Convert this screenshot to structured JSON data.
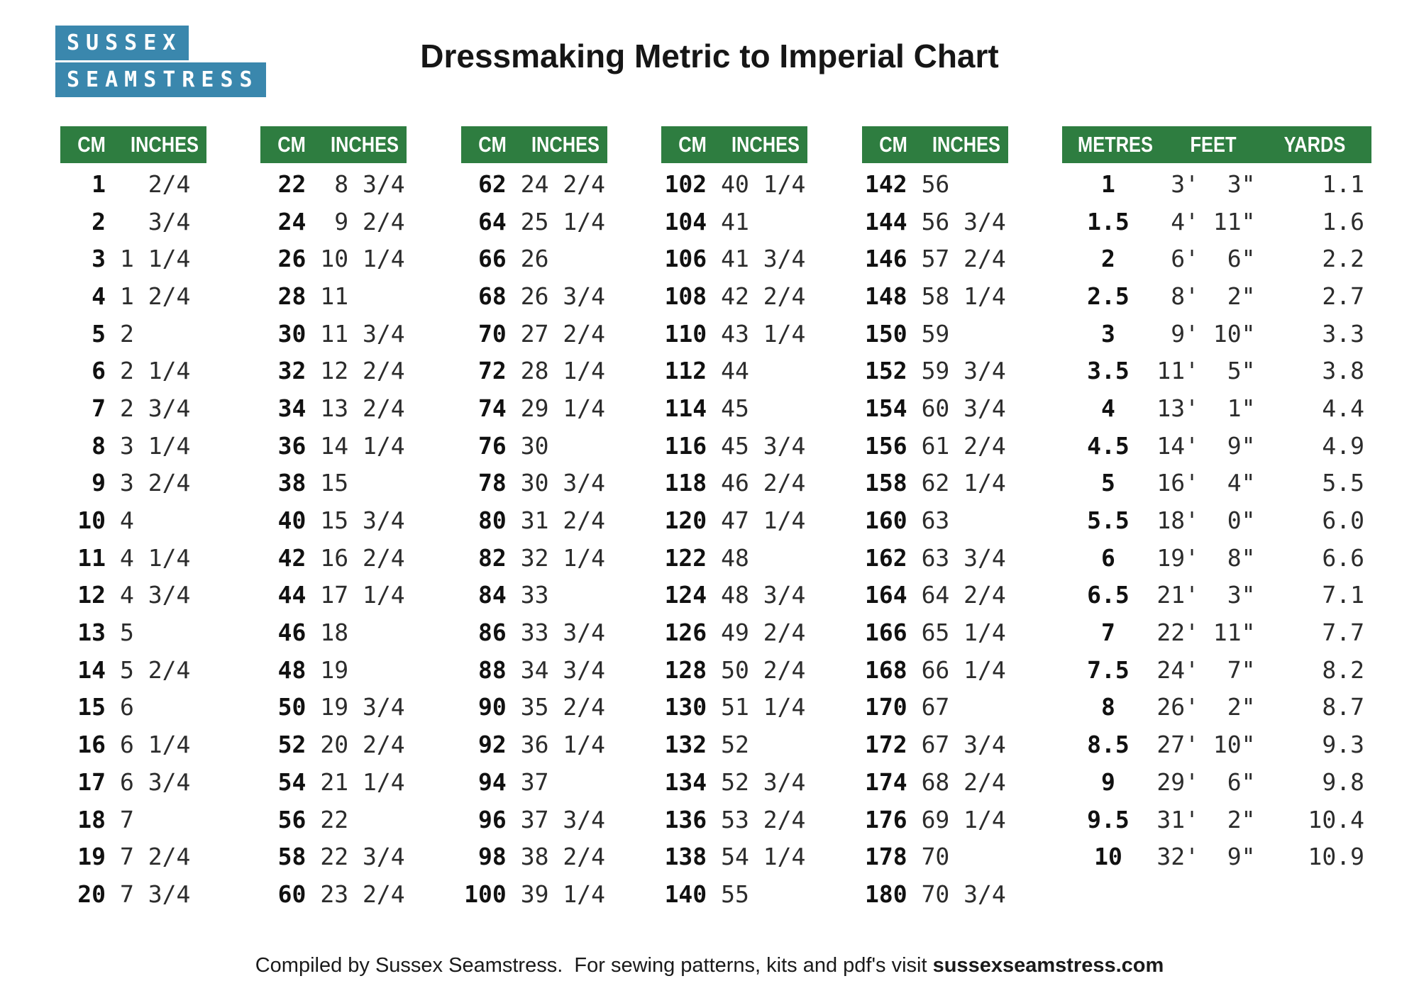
{
  "title": "Dressmaking Metric to Imperial Chart",
  "logo": {
    "line1": "SUSSEX",
    "line2": "SEAMSTRESS"
  },
  "colors": {
    "header_green": "#2e7d40",
    "logo_blue": "#3a87ad"
  },
  "cm_tables": [
    {
      "headers": [
        "CM",
        "INCHES"
      ],
      "rows": [
        [
          "1",
          "  2/4"
        ],
        [
          "2",
          "  3/4"
        ],
        [
          "3",
          "1 1/4"
        ],
        [
          "4",
          "1 2/4"
        ],
        [
          "5",
          "2"
        ],
        [
          "6",
          "2 1/4"
        ],
        [
          "7",
          "2 3/4"
        ],
        [
          "8",
          "3 1/4"
        ],
        [
          "9",
          "3 2/4"
        ],
        [
          "10",
          "4"
        ],
        [
          "11",
          "4 1/4"
        ],
        [
          "12",
          "4 3/4"
        ],
        [
          "13",
          "5"
        ],
        [
          "14",
          "5 2/4"
        ],
        [
          "15",
          "6"
        ],
        [
          "16",
          "6 1/4"
        ],
        [
          "17",
          "6 3/4"
        ],
        [
          "18",
          "7"
        ],
        [
          "19",
          "7 2/4"
        ],
        [
          "20",
          "7 3/4"
        ]
      ]
    },
    {
      "headers": [
        "CM",
        "INCHES"
      ],
      "rows": [
        [
          "22",
          " 8 3/4"
        ],
        [
          "24",
          " 9 2/4"
        ],
        [
          "26",
          "10 1/4"
        ],
        [
          "28",
          "11"
        ],
        [
          "30",
          "11 3/4"
        ],
        [
          "32",
          "12 2/4"
        ],
        [
          "34",
          "13 2/4"
        ],
        [
          "36",
          "14 1/4"
        ],
        [
          "38",
          "15"
        ],
        [
          "40",
          "15 3/4"
        ],
        [
          "42",
          "16 2/4"
        ],
        [
          "44",
          "17 1/4"
        ],
        [
          "46",
          "18"
        ],
        [
          "48",
          "19"
        ],
        [
          "50",
          "19 3/4"
        ],
        [
          "52",
          "20 2/4"
        ],
        [
          "54",
          "21 1/4"
        ],
        [
          "56",
          "22"
        ],
        [
          "58",
          "22 3/4"
        ],
        [
          "60",
          "23 2/4"
        ]
      ]
    },
    {
      "headers": [
        "CM",
        "INCHES"
      ],
      "rows": [
        [
          "62",
          "24 2/4"
        ],
        [
          "64",
          "25 1/4"
        ],
        [
          "66",
          "26"
        ],
        [
          "68",
          "26 3/4"
        ],
        [
          "70",
          "27 2/4"
        ],
        [
          "72",
          "28 1/4"
        ],
        [
          "74",
          "29 1/4"
        ],
        [
          "76",
          "30"
        ],
        [
          "78",
          "30 3/4"
        ],
        [
          "80",
          "31 2/4"
        ],
        [
          "82",
          "32 1/4"
        ],
        [
          "84",
          "33"
        ],
        [
          "86",
          "33 3/4"
        ],
        [
          "88",
          "34 3/4"
        ],
        [
          "90",
          "35 2/4"
        ],
        [
          "92",
          "36 1/4"
        ],
        [
          "94",
          "37"
        ],
        [
          "96",
          "37 3/4"
        ],
        [
          "98",
          "38 2/4"
        ],
        [
          "100",
          "39 1/4"
        ]
      ]
    },
    {
      "headers": [
        "CM",
        "INCHES"
      ],
      "rows": [
        [
          "102",
          "40 1/4"
        ],
        [
          "104",
          "41"
        ],
        [
          "106",
          "41 3/4"
        ],
        [
          "108",
          "42 2/4"
        ],
        [
          "110",
          "43 1/4"
        ],
        [
          "112",
          "44"
        ],
        [
          "114",
          "45"
        ],
        [
          "116",
          "45 3/4"
        ],
        [
          "118",
          "46 2/4"
        ],
        [
          "120",
          "47 1/4"
        ],
        [
          "122",
          "48"
        ],
        [
          "124",
          "48 3/4"
        ],
        [
          "126",
          "49 2/4"
        ],
        [
          "128",
          "50 2/4"
        ],
        [
          "130",
          "51 1/4"
        ],
        [
          "132",
          "52"
        ],
        [
          "134",
          "52 3/4"
        ],
        [
          "136",
          "53 2/4"
        ],
        [
          "138",
          "54 1/4"
        ],
        [
          "140",
          "55"
        ]
      ]
    },
    {
      "headers": [
        "CM",
        "INCHES"
      ],
      "rows": [
        [
          "142",
          "56"
        ],
        [
          "144",
          "56 3/4"
        ],
        [
          "146",
          "57 2/4"
        ],
        [
          "148",
          "58 1/4"
        ],
        [
          "150",
          "59"
        ],
        [
          "152",
          "59 3/4"
        ],
        [
          "154",
          "60 3/4"
        ],
        [
          "156",
          "61 2/4"
        ],
        [
          "158",
          "62 1/4"
        ],
        [
          "160",
          "63"
        ],
        [
          "162",
          "63 3/4"
        ],
        [
          "164",
          "64 2/4"
        ],
        [
          "166",
          "65 1/4"
        ],
        [
          "168",
          "66 1/4"
        ],
        [
          "170",
          "67"
        ],
        [
          "172",
          "67 3/4"
        ],
        [
          "174",
          "68 2/4"
        ],
        [
          "176",
          "69 1/4"
        ],
        [
          "178",
          "70"
        ],
        [
          "180",
          "70 3/4"
        ]
      ]
    }
  ],
  "metres_table": {
    "headers": [
      "METRES",
      "FEET",
      "YARDS"
    ],
    "rows": [
      [
        "1",
        " 3'  3\"",
        "1.1"
      ],
      [
        "1.5",
        " 4' 11\"",
        "1.6"
      ],
      [
        "2",
        " 6'  6\"",
        "2.2"
      ],
      [
        "2.5",
        " 8'  2\"",
        "2.7"
      ],
      [
        "3",
        " 9' 10\"",
        "3.3"
      ],
      [
        "3.5",
        "11'  5\"",
        "3.8"
      ],
      [
        "4",
        "13'  1\"",
        "4.4"
      ],
      [
        "4.5",
        "14'  9\"",
        "4.9"
      ],
      [
        "5",
        "16'  4\"",
        "5.5"
      ],
      [
        "5.5",
        "18'  0\"",
        "6.0"
      ],
      [
        "6",
        "19'  8\"",
        "6.6"
      ],
      [
        "6.5",
        "21'  3\"",
        "7.1"
      ],
      [
        "7",
        "22' 11\"",
        "7.7"
      ],
      [
        "7.5",
        "24'  7\"",
        "8.2"
      ],
      [
        "8",
        "26'  2\"",
        "8.7"
      ],
      [
        "8.5",
        "27' 10\"",
        "9.3"
      ],
      [
        "9",
        "29'  6\"",
        "9.8"
      ],
      [
        "9.5",
        "31'  2\"",
        "10.4"
      ],
      [
        "10",
        "32'  9\"",
        "10.9"
      ]
    ]
  },
  "footer": {
    "prefix": "Compiled by Sussex Seamstress.  For sewing patterns, kits and pdf's visit ",
    "site": "sussexseamstress.com"
  }
}
